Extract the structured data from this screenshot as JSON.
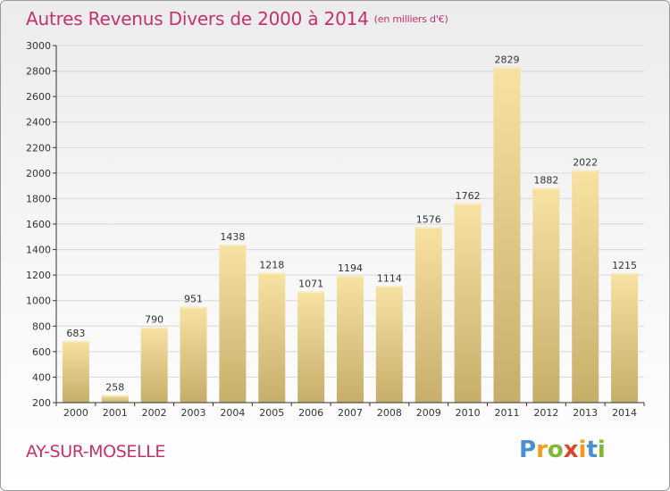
{
  "header": {
    "title": "Autres Revenus Divers de 2000 à 2014",
    "unit": "(en milliers d'€)"
  },
  "footer": {
    "commune": "AY-SUR-MOSELLE",
    "logo_text": "Proxiti"
  },
  "colors": {
    "title": "#c5306f",
    "bar_light": "#f8e2a2",
    "bar_dark": "#c6ae6a",
    "axis": "#333333",
    "grid": "#d8d8d8",
    "logo": [
      "#4a8fd1",
      "#f39a1f",
      "#7fb735",
      "#e0432b",
      "#f39a1f",
      "#4a8fd1",
      "#7fb735"
    ]
  },
  "chart_data": {
    "type": "bar",
    "categories": [
      "2000",
      "2001",
      "2002",
      "2003",
      "2004",
      "2005",
      "2006",
      "2007",
      "2008",
      "2009",
      "2010",
      "2011",
      "2012",
      "2013",
      "2014"
    ],
    "values": [
      683,
      258,
      790,
      951,
      1438,
      1218,
      1071,
      1194,
      1114,
      1576,
      1762,
      2829,
      1882,
      2022,
      1215
    ],
    "ylim": [
      200,
      3000
    ],
    "yticks": [
      200,
      400,
      600,
      800,
      1000,
      1200,
      1400,
      1600,
      1800,
      2000,
      2200,
      2400,
      2600,
      2800,
      3000
    ],
    "grid": true
  }
}
